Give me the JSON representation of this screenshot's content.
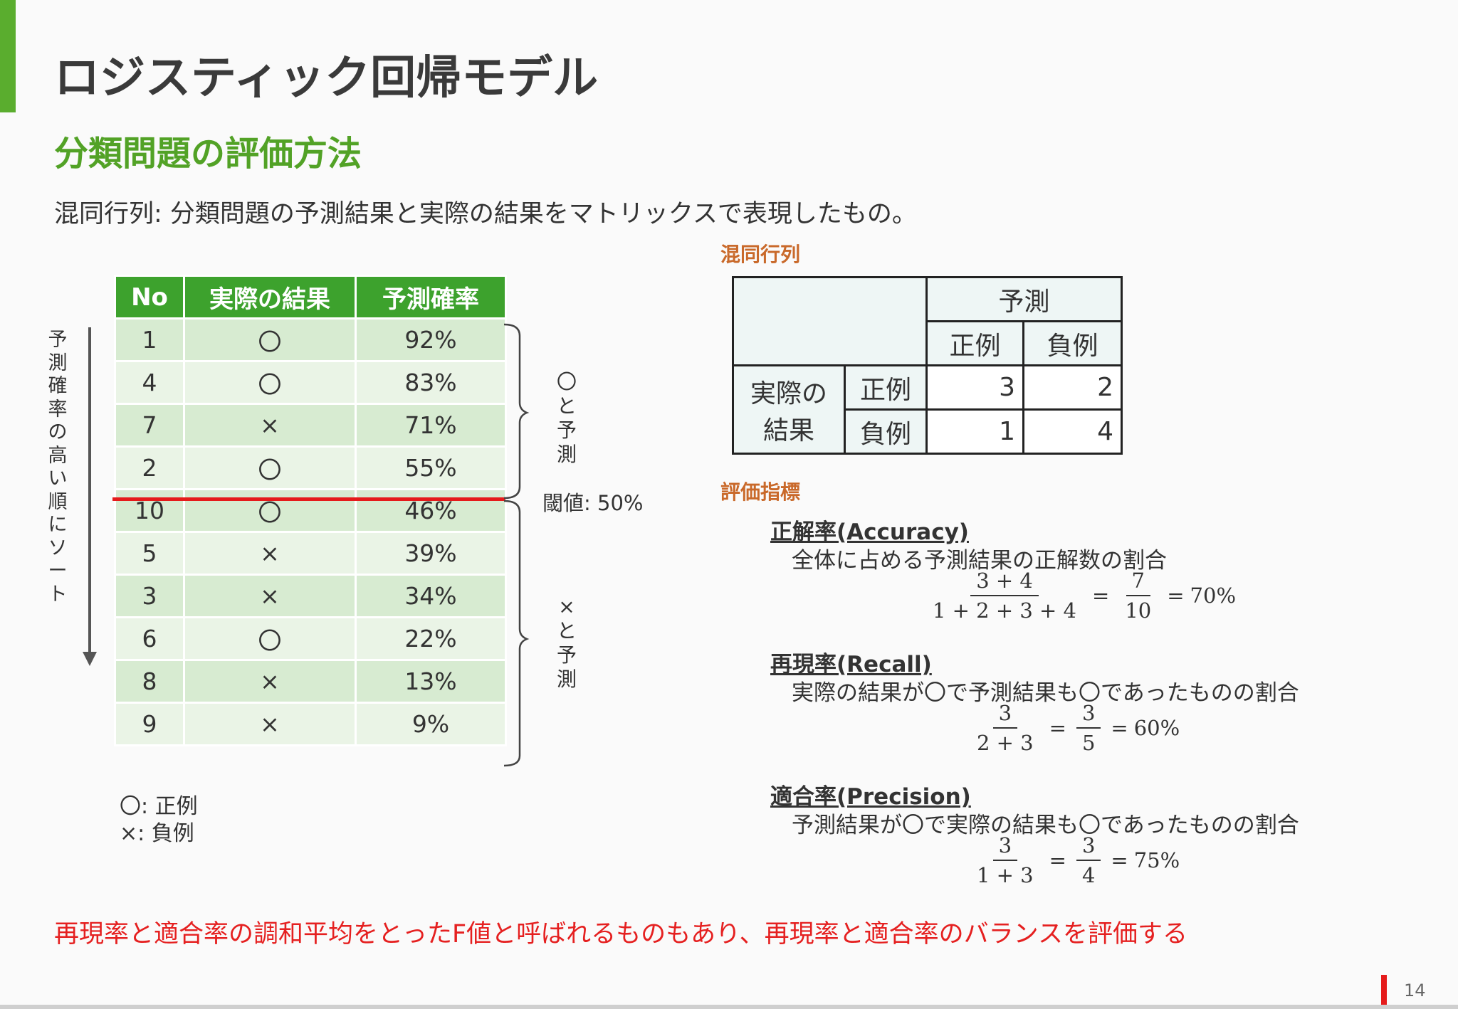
{
  "title": "ロジスティック回帰モデル",
  "subtitle": "分類問題の評価方法",
  "intro": "混同行列: 分類問題の予測結果と実際の結果をマトリックスで表現したもの。",
  "left_table": {
    "headers": [
      "No",
      "実際の結果",
      "予測確率"
    ],
    "rows": [
      [
        "1",
        "〇",
        "92%"
      ],
      [
        "4",
        "〇",
        "83%"
      ],
      [
        "7",
        "×",
        "71%"
      ],
      [
        "2",
        "〇",
        "55%"
      ],
      [
        "10",
        "〇",
        "46%"
      ],
      [
        "5",
        "×",
        "39%"
      ],
      [
        "3",
        "×",
        "34%"
      ],
      [
        "6",
        "〇",
        "22%"
      ],
      [
        "8",
        "×",
        "13%"
      ],
      [
        "9",
        "×",
        "9%"
      ]
    ]
  },
  "sort_label": "予測確率の高い順にソート",
  "positive_prediction_label": "〇と予測",
  "negative_prediction_label": "×と予測",
  "threshold_label": "閾値: 50%",
  "legend": {
    "positive": "〇: 正例",
    "negative": "×: 負例"
  },
  "confusion_matrix": {
    "label": "混同行列",
    "predicted_header": "予測",
    "predicted_positive": "正例",
    "predicted_negative": "負例",
    "actual_header_line1": "実際の",
    "actual_header_line2": "結果",
    "actual_positive": "正例",
    "actual_negative": "負例",
    "values": {
      "tp": "3",
      "fn": "2",
      "fp": "1",
      "tn": "4"
    }
  },
  "metrics_label": "評価指標",
  "metrics": {
    "accuracy": {
      "title": "正解率(Accuracy)",
      "desc": "全体に占める予測結果の正解数の割合",
      "num1": "3 + 4",
      "den1": "1 + 2 + 3 + 4",
      "num2": "7",
      "den2": "10",
      "result": "70%"
    },
    "recall": {
      "title": "再現率(Recall)",
      "desc": "実際の結果が〇で予測結果も〇であったものの割合",
      "num1": "3",
      "den1": "2 + 3",
      "num2": "3",
      "den2": "5",
      "result": "60%"
    },
    "precision": {
      "title": "適合率(Precision)",
      "desc": "予測結果が〇で実際の結果も〇であったものの割合",
      "num1": "3",
      "den1": "1 + 3",
      "num2": "3",
      "den2": "4",
      "result": "75%"
    }
  },
  "equals": "=",
  "footer_note": "再現率と適合率の調和平均をとったF値と呼ばれるものもあり、再現率と適合率のバランスを評価する",
  "page_number": "14",
  "colors": {
    "accent_green": "#5aad2e",
    "header_green": "#3da22d",
    "threshold_red": "#e51b1b",
    "section_orange": "#c9692a"
  }
}
